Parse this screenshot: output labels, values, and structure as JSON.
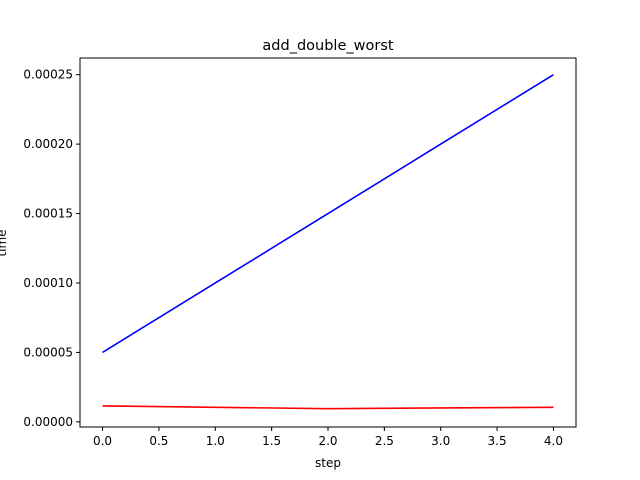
{
  "chart_data": {
    "type": "line",
    "title": "add_double_worst",
    "xlabel": "step",
    "ylabel": "time",
    "x": [
      0,
      1,
      2,
      3,
      4
    ],
    "xlim": [
      -0.2,
      4.2
    ],
    "ylim": [
      -3.7e-06,
      0.000262
    ],
    "xticks": [
      0.0,
      0.5,
      1.0,
      1.5,
      2.0,
      2.5,
      3.0,
      3.5,
      4.0
    ],
    "xtick_labels": [
      "0.0",
      "0.5",
      "1.0",
      "1.5",
      "2.0",
      "2.5",
      "3.0",
      "3.5",
      "4.0"
    ],
    "yticks": [
      0.0,
      5e-05,
      0.0001,
      0.00015,
      0.0002,
      0.00025
    ],
    "ytick_labels": [
      "0.00000",
      "0.00005",
      "0.00010",
      "0.00015",
      "0.00020",
      "0.00025"
    ],
    "grid": false,
    "series": [
      {
        "color": "#0000ff",
        "values": [
          5e-05,
          0.0001,
          0.00015,
          0.0002,
          0.00025
        ]
      },
      {
        "color": "#ff0000",
        "values": [
          1.15e-05,
          1.05e-05,
          9.5e-06,
          1e-05,
          1.05e-05
        ]
      }
    ]
  }
}
